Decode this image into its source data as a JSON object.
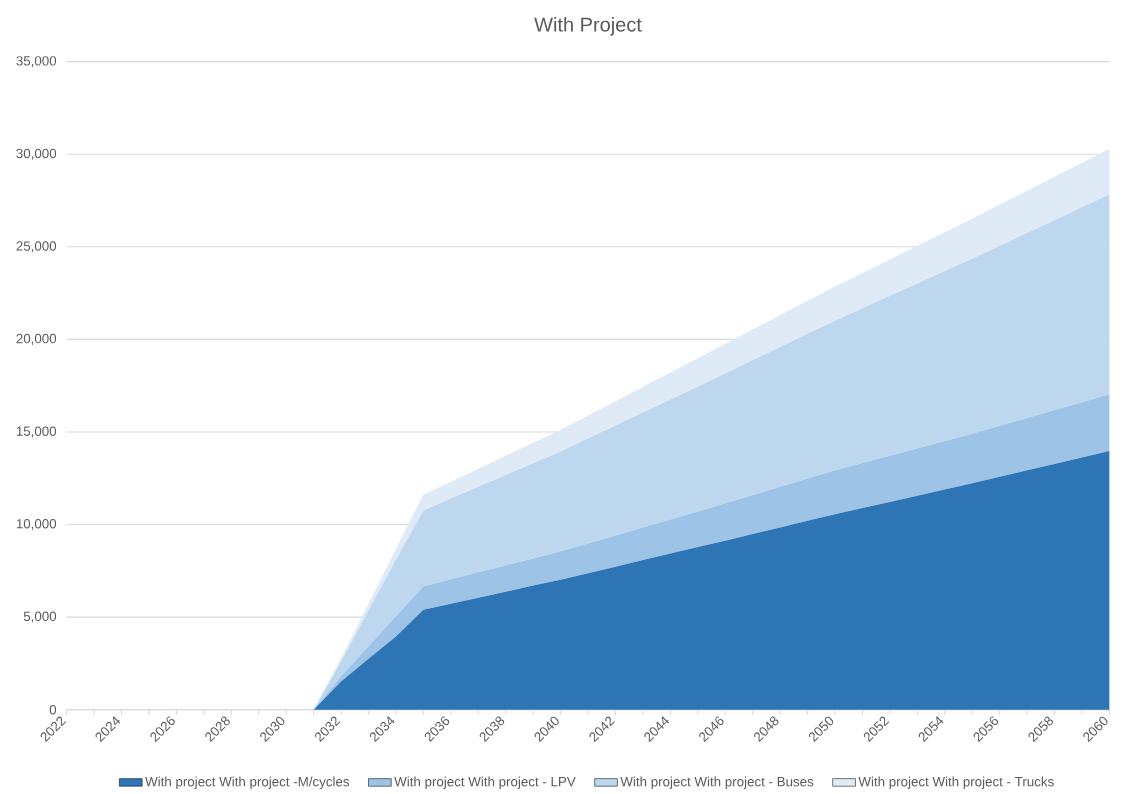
{
  "chart_data": {
    "type": "area",
    "title": "With Project",
    "stacked": true,
    "grid": "y",
    "legend": "bottom",
    "categories": [
      "2022",
      null,
      "2024",
      null,
      "2026",
      null,
      "2028",
      null,
      "2030",
      null,
      "2032",
      null,
      "2034",
      null,
      "2036",
      null,
      "2038",
      null,
      "2040",
      null,
      "2042",
      null,
      "2044",
      null,
      "2046",
      null,
      "2048",
      null,
      "2050",
      null,
      "2052",
      null,
      "2054",
      null,
      "2056",
      null,
      "2058",
      null,
      "2060"
    ],
    "ylim": [
      0,
      35000
    ],
    "yticks": [
      {
        "value": 0,
        "label": "0"
      },
      {
        "value": 5000,
        "label": "5,000"
      },
      {
        "value": 10000,
        "label": "10,000"
      },
      {
        "value": 15000,
        "label": "15,000"
      },
      {
        "value": 20000,
        "label": "20,000"
      },
      {
        "value": 25000,
        "label": "25,000"
      },
      {
        "value": 30000,
        "label": "30,000"
      },
      {
        "value": 35000,
        "label": "35,000"
      }
    ],
    "series": [
      {
        "name": "With project With project -M/cycles",
        "color": "#2e75b6",
        "values": [
          0,
          0,
          0,
          0,
          0,
          0,
          0,
          0,
          0,
          0,
          1520,
          2750,
          3950,
          5400,
          5720,
          6050,
          6370,
          6700,
          7020,
          7370,
          7720,
          8080,
          8430,
          8780,
          9130,
          9490,
          9840,
          10200,
          10550,
          10890,
          11220,
          11560,
          11890,
          12230,
          12580,
          12930,
          13270,
          13620,
          13970
        ]
      },
      {
        "name": "With project With project - LPV",
        "color": "#9dc3e6",
        "values": [
          0,
          0,
          0,
          0,
          0,
          0,
          0,
          0,
          0,
          0,
          280,
          670,
          1090,
          1260,
          1320,
          1370,
          1420,
          1470,
          1530,
          1610,
          1690,
          1760,
          1840,
          1920,
          2020,
          2100,
          2200,
          2280,
          2380,
          2430,
          2500,
          2550,
          2620,
          2670,
          2750,
          2820,
          2910,
          2980,
          3060
        ]
      },
      {
        "name": "With project With project - Buses",
        "color": "#bdd7ee",
        "values": [
          0,
          0,
          0,
          0,
          0,
          0,
          0,
          0,
          0,
          0,
          790,
          1930,
          3060,
          4100,
          4360,
          4620,
          4880,
          5140,
          5400,
          5670,
          5940,
          6210,
          6480,
          6750,
          7010,
          7280,
          7550,
          7820,
          8080,
          8360,
          8630,
          8910,
          9180,
          9460,
          9720,
          10000,
          10260,
          10540,
          10800
        ]
      },
      {
        "name": "With project With project - Trucks",
        "color": "#deebf7",
        "values": [
          0,
          0,
          0,
          0,
          0,
          0,
          0,
          0,
          0,
          0,
          200,
          370,
          600,
          850,
          910,
          970,
          1050,
          1110,
          1170,
          1240,
          1310,
          1390,
          1460,
          1530,
          1600,
          1660,
          1720,
          1780,
          1850,
          1910,
          1970,
          2040,
          2100,
          2160,
          2230,
          2280,
          2350,
          2400,
          2470
        ]
      }
    ]
  }
}
